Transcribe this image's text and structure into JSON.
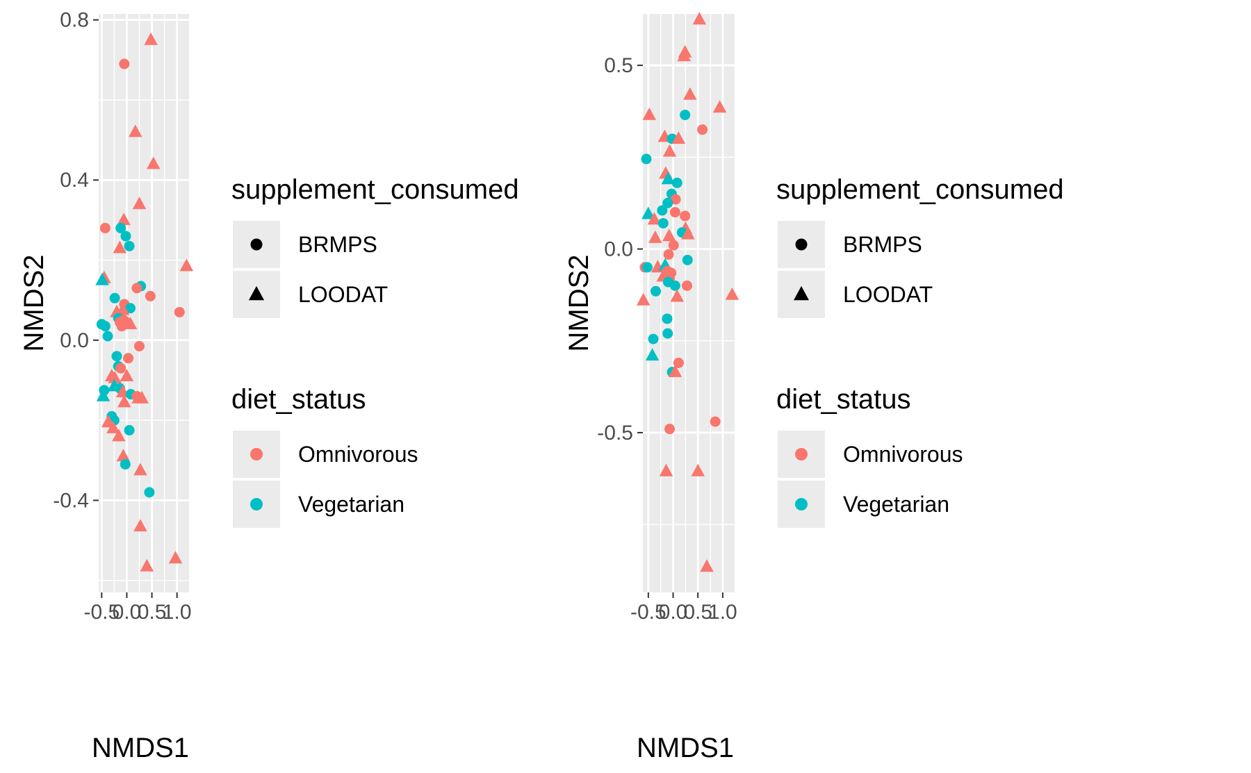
{
  "chart_data": [
    {
      "type": "scatter",
      "title": "",
      "xlabel": "NMDS1",
      "ylabel": "NMDS2",
      "xlim": [
        -0.56,
        1.24
      ],
      "ylim": [
        -0.63,
        0.815
      ],
      "x_ticks": [
        -0.5,
        0.0,
        0.5,
        1.0
      ],
      "x_tick_labels": [
        "-0.5",
        "0.0",
        "0.5",
        "1.0"
      ],
      "y_ticks": [
        -0.4,
        0.0,
        0.4,
        0.8
      ],
      "y_tick_labels": [
        "-0.4",
        "0.0",
        "0.4",
        "0.8"
      ],
      "grid": true,
      "points": [
        {
          "x": 0.48,
          "y": 0.75,
          "shape": "LOODAT",
          "diet": "Omnivorous"
        },
        {
          "x": -0.05,
          "y": 0.69,
          "shape": "BRMPS",
          "diet": "Omnivorous"
        },
        {
          "x": 0.17,
          "y": 0.52,
          "shape": "LOODAT",
          "diet": "Omnivorous"
        },
        {
          "x": 0.53,
          "y": 0.44,
          "shape": "LOODAT",
          "diet": "Omnivorous"
        },
        {
          "x": 0.25,
          "y": 0.34,
          "shape": "LOODAT",
          "diet": "Omnivorous"
        },
        {
          "x": -0.06,
          "y": 0.3,
          "shape": "LOODAT",
          "diet": "Omnivorous"
        },
        {
          "x": -0.12,
          "y": 0.28,
          "shape": "BRMPS",
          "diet": "Vegetarian"
        },
        {
          "x": -0.43,
          "y": 0.28,
          "shape": "BRMPS",
          "diet": "Omnivorous"
        },
        {
          "x": -0.02,
          "y": 0.26,
          "shape": "BRMPS",
          "diet": "Vegetarian"
        },
        {
          "x": 0.05,
          "y": 0.235,
          "shape": "BRMPS",
          "diet": "Vegetarian"
        },
        {
          "x": -0.14,
          "y": 0.23,
          "shape": "LOODAT",
          "diet": "Omnivorous"
        },
        {
          "x": 1.19,
          "y": 0.185,
          "shape": "LOODAT",
          "diet": "Omnivorous"
        },
        {
          "x": -0.45,
          "y": 0.155,
          "shape": "LOODAT",
          "diet": "Omnivorous"
        },
        {
          "x": -0.49,
          "y": 0.15,
          "shape": "LOODAT",
          "diet": "Vegetarian"
        },
        {
          "x": 0.28,
          "y": 0.135,
          "shape": "BRMPS",
          "diet": "Vegetarian"
        },
        {
          "x": 0.2,
          "y": 0.13,
          "shape": "BRMPS",
          "diet": "Omnivorous"
        },
        {
          "x": 0.47,
          "y": 0.11,
          "shape": "BRMPS",
          "diet": "Omnivorous"
        },
        {
          "x": -0.24,
          "y": 0.105,
          "shape": "BRMPS",
          "diet": "Vegetarian"
        },
        {
          "x": -0.05,
          "y": 0.09,
          "shape": "BRMPS",
          "diet": "Omnivorous"
        },
        {
          "x": 0.07,
          "y": 0.08,
          "shape": "BRMPS",
          "diet": "Vegetarian"
        },
        {
          "x": -0.08,
          "y": 0.075,
          "shape": "LOODAT",
          "diet": "Omnivorous"
        },
        {
          "x": 1.05,
          "y": 0.07,
          "shape": "BRMPS",
          "diet": "Omnivorous"
        },
        {
          "x": -0.2,
          "y": 0.07,
          "shape": "LOODAT",
          "diet": "Omnivorous"
        },
        {
          "x": -0.11,
          "y": 0.06,
          "shape": "LOODAT",
          "diet": "Omnivorous"
        },
        {
          "x": -0.17,
          "y": 0.055,
          "shape": "BRMPS",
          "diet": "Vegetarian"
        },
        {
          "x": -0.06,
          "y": 0.05,
          "shape": "BRMPS",
          "diet": "Omnivorous"
        },
        {
          "x": -0.14,
          "y": 0.045,
          "shape": "BRMPS",
          "diet": "Omnivorous"
        },
        {
          "x": 0.03,
          "y": 0.04,
          "shape": "LOODAT",
          "diet": "Omnivorous"
        },
        {
          "x": 0.07,
          "y": 0.04,
          "shape": "LOODAT",
          "diet": "Omnivorous"
        },
        {
          "x": -0.1,
          "y": 0.035,
          "shape": "BRMPS",
          "diet": "Omnivorous"
        },
        {
          "x": -0.5,
          "y": 0.04,
          "shape": "BRMPS",
          "diet": "Vegetarian"
        },
        {
          "x": -0.43,
          "y": 0.035,
          "shape": "BRMPS",
          "diet": "Vegetarian"
        },
        {
          "x": -0.38,
          "y": 0.01,
          "shape": "BRMPS",
          "diet": "Vegetarian"
        },
        {
          "x": 0.25,
          "y": -0.015,
          "shape": "BRMPS",
          "diet": "Omnivorous"
        },
        {
          "x": 0.03,
          "y": -0.045,
          "shape": "BRMPS",
          "diet": "Omnivorous"
        },
        {
          "x": -0.2,
          "y": -0.04,
          "shape": "BRMPS",
          "diet": "Vegetarian"
        },
        {
          "x": -0.17,
          "y": -0.065,
          "shape": "BRMPS",
          "diet": "Vegetarian"
        },
        {
          "x": -0.12,
          "y": -0.07,
          "shape": "BRMPS",
          "diet": "Omnivorous"
        },
        {
          "x": -0.3,
          "y": -0.09,
          "shape": "LOODAT",
          "diet": "Omnivorous"
        },
        {
          "x": -0.24,
          "y": -0.095,
          "shape": "LOODAT",
          "diet": "Omnivorous"
        },
        {
          "x": 0.0,
          "y": -0.09,
          "shape": "LOODAT",
          "diet": "Omnivorous"
        },
        {
          "x": -0.25,
          "y": -0.115,
          "shape": "LOODAT",
          "diet": "Vegetarian"
        },
        {
          "x": -0.14,
          "y": -0.12,
          "shape": "BRMPS",
          "diet": "Vegetarian"
        },
        {
          "x": -0.45,
          "y": -0.125,
          "shape": "BRMPS",
          "diet": "Vegetarian"
        },
        {
          "x": -0.08,
          "y": -0.13,
          "shape": "LOODAT",
          "diet": "Omnivorous"
        },
        {
          "x": 0.08,
          "y": -0.135,
          "shape": "BRMPS",
          "diet": "Vegetarian"
        },
        {
          "x": -0.47,
          "y": -0.14,
          "shape": "LOODAT",
          "diet": "Vegetarian"
        },
        {
          "x": 0.2,
          "y": -0.14,
          "shape": "BRMPS",
          "diet": "Omnivorous"
        },
        {
          "x": 0.3,
          "y": -0.145,
          "shape": "LOODAT",
          "diet": "Omnivorous"
        },
        {
          "x": 0.23,
          "y": -0.145,
          "shape": "LOODAT",
          "diet": "Omnivorous"
        },
        {
          "x": -0.05,
          "y": -0.155,
          "shape": "LOODAT",
          "diet": "Omnivorous"
        },
        {
          "x": -0.3,
          "y": -0.19,
          "shape": "BRMPS",
          "diet": "Vegetarian"
        },
        {
          "x": -0.25,
          "y": -0.2,
          "shape": "BRMPS",
          "diet": "Vegetarian"
        },
        {
          "x": -0.37,
          "y": -0.205,
          "shape": "LOODAT",
          "diet": "Omnivorous"
        },
        {
          "x": -0.27,
          "y": -0.22,
          "shape": "LOODAT",
          "diet": "Omnivorous"
        },
        {
          "x": 0.05,
          "y": -0.225,
          "shape": "BRMPS",
          "diet": "Vegetarian"
        },
        {
          "x": -0.16,
          "y": -0.24,
          "shape": "LOODAT",
          "diet": "Omnivorous"
        },
        {
          "x": -0.07,
          "y": -0.29,
          "shape": "LOODAT",
          "diet": "Omnivorous"
        },
        {
          "x": -0.03,
          "y": -0.31,
          "shape": "BRMPS",
          "diet": "Vegetarian"
        },
        {
          "x": 0.27,
          "y": -0.325,
          "shape": "LOODAT",
          "diet": "Omnivorous"
        },
        {
          "x": 0.45,
          "y": -0.38,
          "shape": "BRMPS",
          "diet": "Vegetarian"
        },
        {
          "x": 0.27,
          "y": -0.465,
          "shape": "LOODAT",
          "diet": "Omnivorous"
        },
        {
          "x": 0.97,
          "y": -0.545,
          "shape": "LOODAT",
          "diet": "Omnivorous"
        },
        {
          "x": 0.4,
          "y": -0.565,
          "shape": "LOODAT",
          "diet": "Omnivorous"
        }
      ]
    },
    {
      "type": "scatter",
      "title": "",
      "xlabel": "NMDS1",
      "ylabel": "NMDS2",
      "xlim": [
        -0.61,
        1.24
      ],
      "ylim": [
        -0.935,
        0.64
      ],
      "x_ticks": [
        -0.5,
        0.0,
        0.5,
        1.0
      ],
      "x_tick_labels": [
        "-0.5",
        "0.0",
        "0.5",
        "1.0"
      ],
      "y_ticks": [
        -0.5,
        0.0,
        0.5
      ],
      "y_tick_labels": [
        "-0.5",
        "0.0",
        "0.5"
      ],
      "grid": true,
      "points": [
        {
          "x": 0.53,
          "y": 0.625,
          "shape": "LOODAT",
          "diet": "Omnivorous"
        },
        {
          "x": 0.24,
          "y": 0.535,
          "shape": "LOODAT",
          "diet": "Omnivorous"
        },
        {
          "x": 0.22,
          "y": 0.525,
          "shape": "LOODAT",
          "diet": "Omnivorous"
        },
        {
          "x": 0.34,
          "y": 0.42,
          "shape": "LOODAT",
          "diet": "Omnivorous"
        },
        {
          "x": 0.94,
          "y": 0.385,
          "shape": "LOODAT",
          "diet": "Omnivorous"
        },
        {
          "x": -0.48,
          "y": 0.365,
          "shape": "LOODAT",
          "diet": "Omnivorous"
        },
        {
          "x": 0.24,
          "y": 0.365,
          "shape": "BRMPS",
          "diet": "Vegetarian"
        },
        {
          "x": 0.59,
          "y": 0.325,
          "shape": "BRMPS",
          "diet": "Omnivorous"
        },
        {
          "x": -0.17,
          "y": 0.305,
          "shape": "LOODAT",
          "diet": "Omnivorous"
        },
        {
          "x": -0.02,
          "y": 0.3,
          "shape": "BRMPS",
          "diet": "Vegetarian"
        },
        {
          "x": 0.11,
          "y": 0.3,
          "shape": "LOODAT",
          "diet": "Omnivorous"
        },
        {
          "x": -0.07,
          "y": 0.265,
          "shape": "LOODAT",
          "diet": "Omnivorous"
        },
        {
          "x": -0.54,
          "y": 0.245,
          "shape": "BRMPS",
          "diet": "Vegetarian"
        },
        {
          "x": -0.15,
          "y": 0.205,
          "shape": "LOODAT",
          "diet": "Omnivorous"
        },
        {
          "x": -0.1,
          "y": 0.19,
          "shape": "LOODAT",
          "diet": "Vegetarian"
        },
        {
          "x": 0.08,
          "y": 0.18,
          "shape": "BRMPS",
          "diet": "Vegetarian"
        },
        {
          "x": -0.03,
          "y": 0.15,
          "shape": "BRMPS",
          "diet": "Vegetarian"
        },
        {
          "x": 0.05,
          "y": 0.135,
          "shape": "BRMPS",
          "diet": "Omnivorous"
        },
        {
          "x": -0.11,
          "y": 0.125,
          "shape": "BRMPS",
          "diet": "Vegetarian"
        },
        {
          "x": -0.22,
          "y": 0.105,
          "shape": "BRMPS",
          "diet": "Vegetarian"
        },
        {
          "x": 0.04,
          "y": 0.1,
          "shape": "BRMPS",
          "diet": "Omnivorous"
        },
        {
          "x": -0.5,
          "y": 0.095,
          "shape": "LOODAT",
          "diet": "Vegetarian"
        },
        {
          "x": 0.24,
          "y": 0.09,
          "shape": "BRMPS",
          "diet": "Omnivorous"
        },
        {
          "x": -0.38,
          "y": 0.08,
          "shape": "LOODAT",
          "diet": "Omnivorous"
        },
        {
          "x": -0.2,
          "y": 0.07,
          "shape": "BRMPS",
          "diet": "Vegetarian"
        },
        {
          "x": 0.25,
          "y": 0.055,
          "shape": "LOODAT",
          "diet": "Omnivorous"
        },
        {
          "x": 0.18,
          "y": 0.045,
          "shape": "BRMPS",
          "diet": "Vegetarian"
        },
        {
          "x": 0.3,
          "y": 0.04,
          "shape": "LOODAT",
          "diet": "Omnivorous"
        },
        {
          "x": -0.08,
          "y": 0.035,
          "shape": "LOODAT",
          "diet": "Omnivorous"
        },
        {
          "x": -0.36,
          "y": 0.03,
          "shape": "LOODAT",
          "diet": "Omnivorous"
        },
        {
          "x": 0.01,
          "y": 0.01,
          "shape": "BRMPS",
          "diet": "Omnivorous"
        },
        {
          "x": -0.09,
          "y": -0.015,
          "shape": "BRMPS",
          "diet": "Omnivorous"
        },
        {
          "x": 0.29,
          "y": -0.03,
          "shape": "BRMPS",
          "diet": "Vegetarian"
        },
        {
          "x": -0.57,
          "y": -0.05,
          "shape": "BRMPS",
          "diet": "Omnivorous"
        },
        {
          "x": -0.52,
          "y": -0.05,
          "shape": "BRMPS",
          "diet": "Vegetarian"
        },
        {
          "x": -0.31,
          "y": -0.05,
          "shape": "LOODAT",
          "diet": "Omnivorous"
        },
        {
          "x": -0.16,
          "y": -0.045,
          "shape": "LOODAT",
          "diet": "Vegetarian"
        },
        {
          "x": -0.12,
          "y": -0.06,
          "shape": "BRMPS",
          "diet": "Omnivorous"
        },
        {
          "x": -0.04,
          "y": -0.065,
          "shape": "BRMPS",
          "diet": "Omnivorous"
        },
        {
          "x": -0.2,
          "y": -0.075,
          "shape": "LOODAT",
          "diet": "Omnivorous"
        },
        {
          "x": -0.07,
          "y": -0.08,
          "shape": "BRMPS",
          "diet": "Omnivorous"
        },
        {
          "x": -0.1,
          "y": -0.09,
          "shape": "BRMPS",
          "diet": "Vegetarian"
        },
        {
          "x": 0.04,
          "y": -0.1,
          "shape": "BRMPS",
          "diet": "Vegetarian"
        },
        {
          "x": 0.28,
          "y": -0.1,
          "shape": "BRMPS",
          "diet": "Omnivorous"
        },
        {
          "x": -0.35,
          "y": -0.115,
          "shape": "BRMPS",
          "diet": "Vegetarian"
        },
        {
          "x": 1.19,
          "y": -0.125,
          "shape": "LOODAT",
          "diet": "Omnivorous"
        },
        {
          "x": 0.08,
          "y": -0.13,
          "shape": "LOODAT",
          "diet": "Omnivorous"
        },
        {
          "x": -0.6,
          "y": -0.14,
          "shape": "LOODAT",
          "diet": "Omnivorous"
        },
        {
          "x": -0.12,
          "y": -0.19,
          "shape": "BRMPS",
          "diet": "Vegetarian"
        },
        {
          "x": -0.11,
          "y": -0.23,
          "shape": "BRMPS",
          "diet": "Vegetarian"
        },
        {
          "x": -0.4,
          "y": -0.245,
          "shape": "BRMPS",
          "diet": "Vegetarian"
        },
        {
          "x": -0.42,
          "y": -0.29,
          "shape": "LOODAT",
          "diet": "Vegetarian"
        },
        {
          "x": 0.11,
          "y": -0.31,
          "shape": "BRMPS",
          "diet": "Omnivorous"
        },
        {
          "x": -0.02,
          "y": -0.335,
          "shape": "BRMPS",
          "diet": "Vegetarian"
        },
        {
          "x": 0.04,
          "y": -0.335,
          "shape": "LOODAT",
          "diet": "Omnivorous"
        },
        {
          "x": 0.85,
          "y": -0.47,
          "shape": "BRMPS",
          "diet": "Omnivorous"
        },
        {
          "x": -0.07,
          "y": -0.49,
          "shape": "BRMPS",
          "diet": "Omnivorous"
        },
        {
          "x": -0.14,
          "y": -0.605,
          "shape": "LOODAT",
          "diet": "Omnivorous"
        },
        {
          "x": 0.5,
          "y": -0.605,
          "shape": "LOODAT",
          "diet": "Omnivorous"
        },
        {
          "x": 0.68,
          "y": -0.865,
          "shape": "LOODAT",
          "diet": "Omnivorous"
        }
      ]
    }
  ],
  "legend": {
    "shape_title": "supplement_consumed",
    "shape_items": [
      {
        "label": "BRMPS",
        "shape": "circle"
      },
      {
        "label": "LOODAT",
        "shape": "triangle"
      }
    ],
    "color_title": "diet_status",
    "color_items": [
      {
        "label": "Omnivorous",
        "color": "#F8766D"
      },
      {
        "label": "Vegetarian",
        "color": "#00BFC4"
      }
    ]
  },
  "colors": {
    "panel_background": "#EBEBEB",
    "grid": "#FFFFFF",
    "Omnivorous": "#F8766D",
    "Vegetarian": "#00BFC4"
  }
}
